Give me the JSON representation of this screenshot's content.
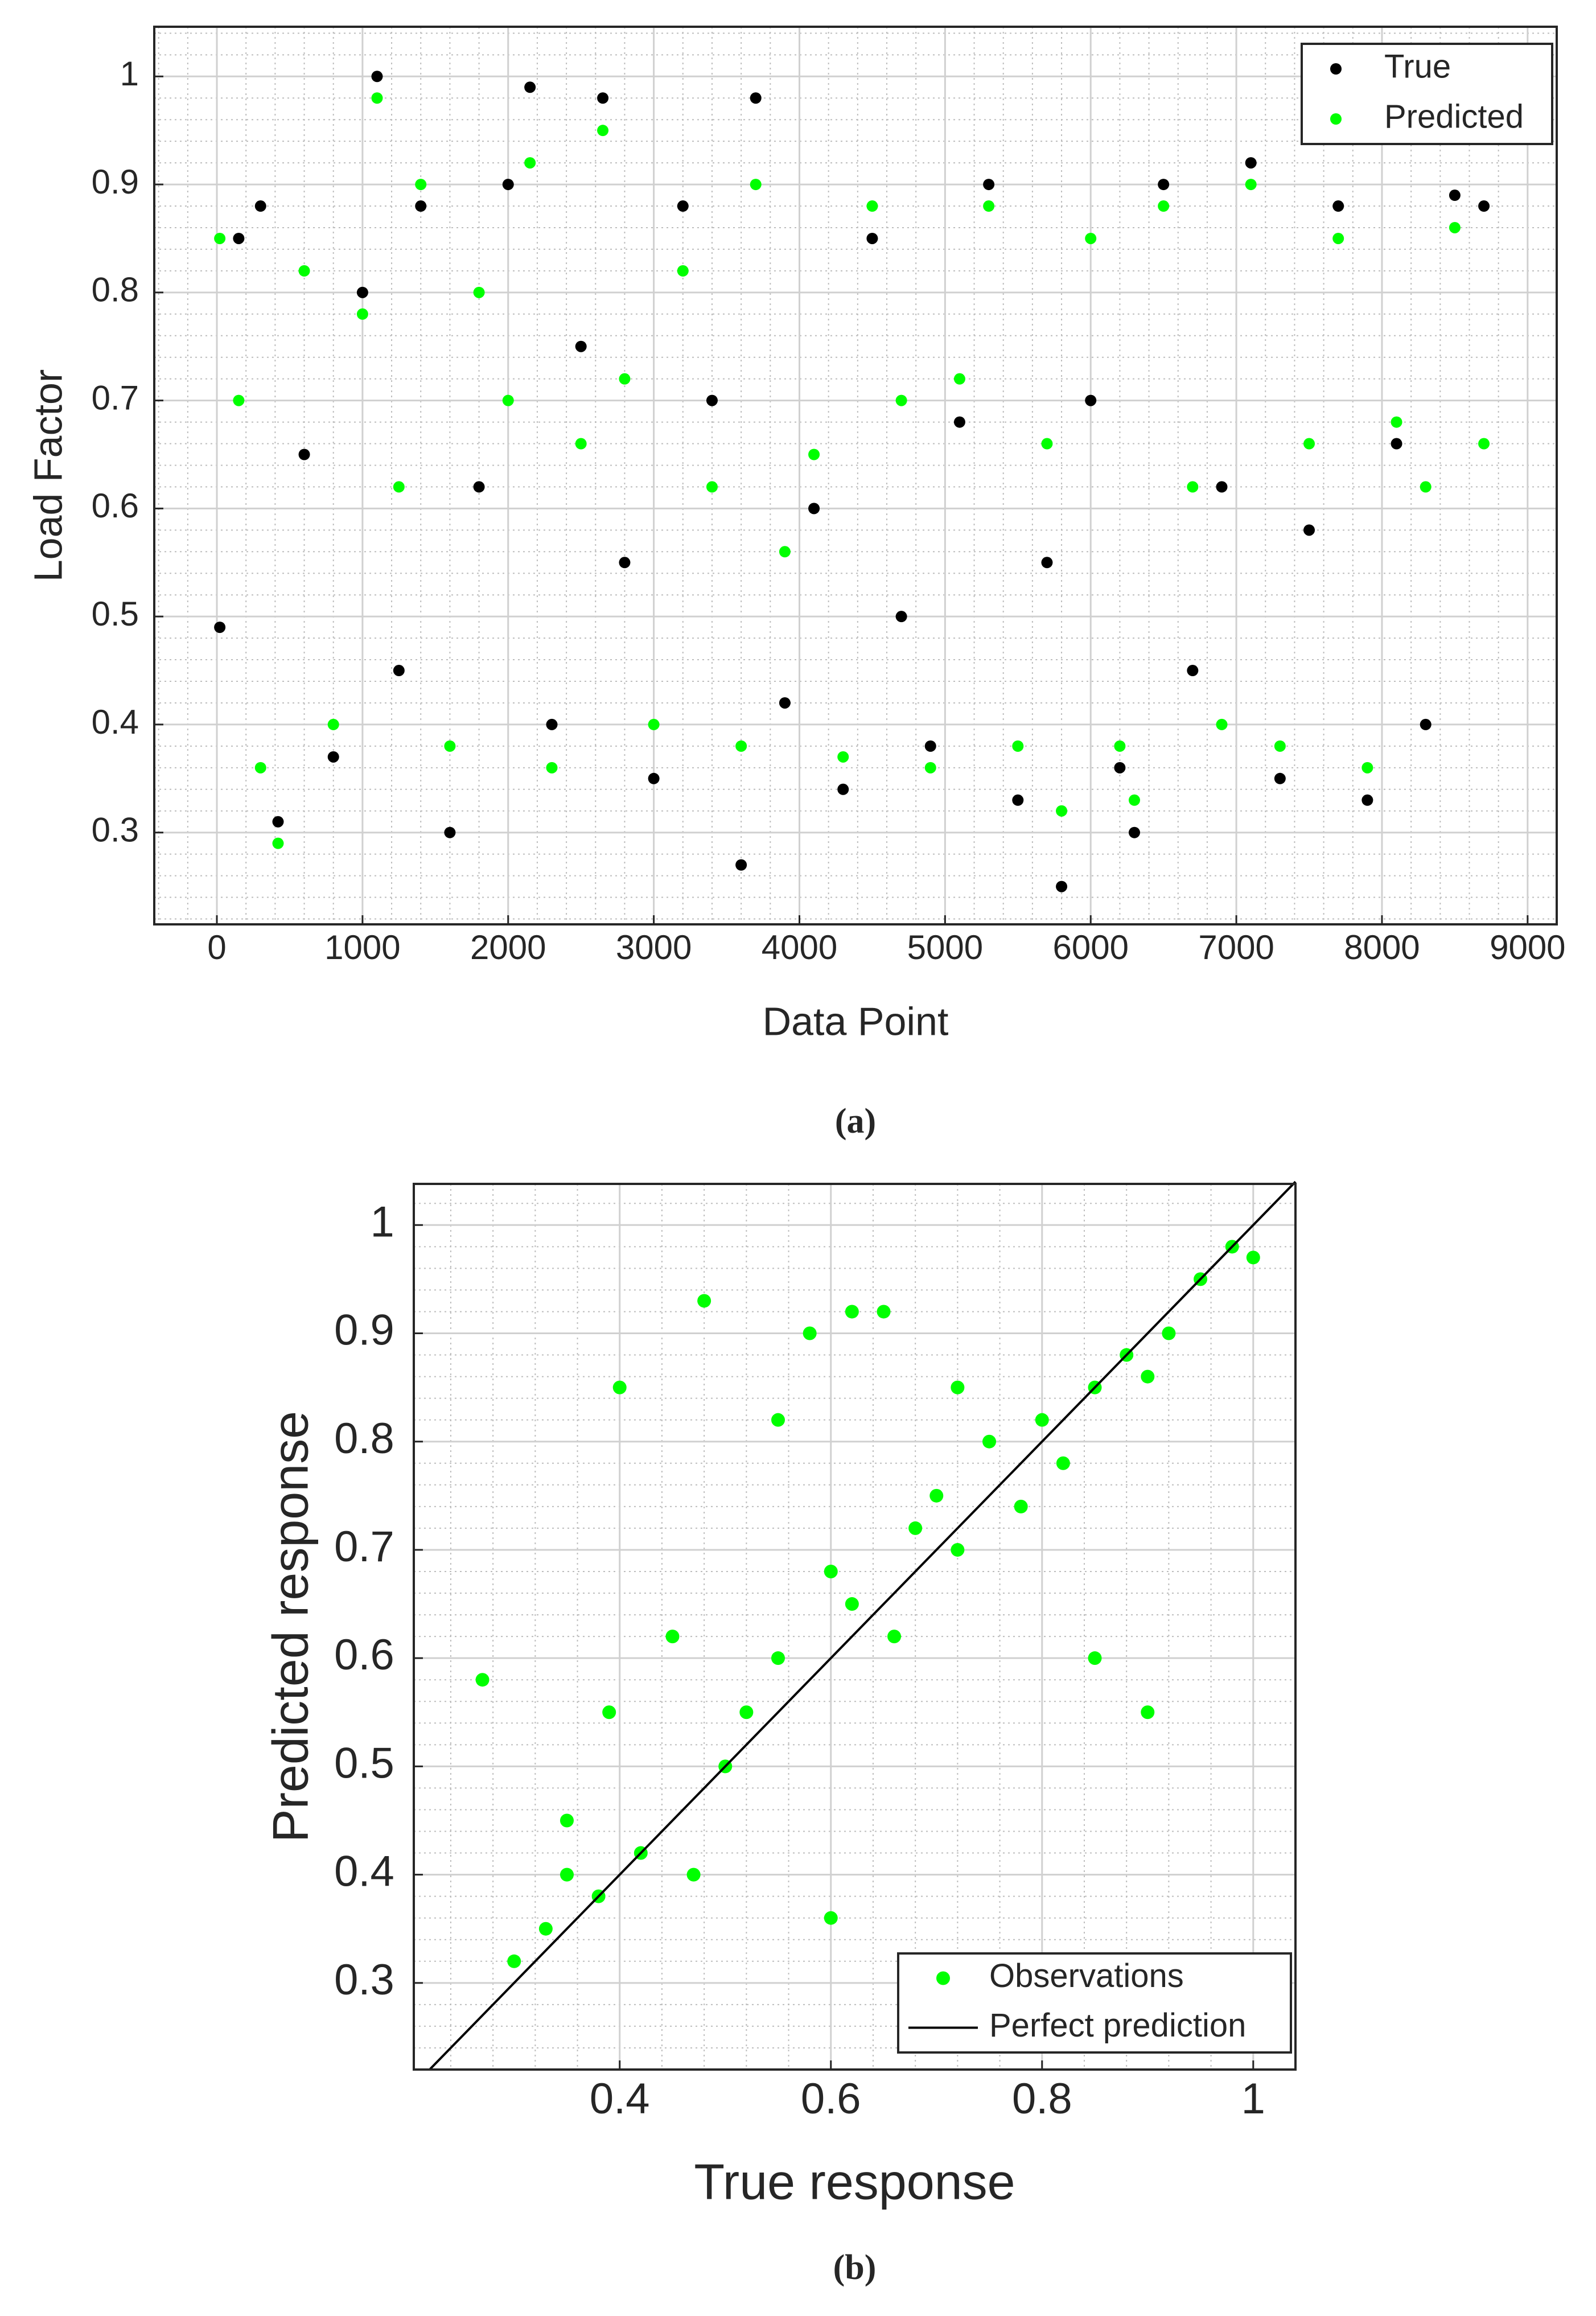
{
  "chart_data": [
    {
      "type": "scatter",
      "caption": "(a)",
      "x_label": "Data Point",
      "y_label": "Load Factor",
      "x": [
        20,
        150,
        300,
        420,
        600,
        800,
        1000,
        1100,
        1250,
        1400,
        1600,
        1800,
        2000,
        2150,
        2300,
        2500,
        2650,
        2800,
        3000,
        3200,
        3400,
        3600,
        3700,
        3900,
        4100,
        4300,
        4500,
        4700,
        4900,
        5100,
        5300,
        5500,
        5700,
        5800,
        6000,
        6200,
        6300,
        6500,
        6700,
        6900,
        7100,
        7300,
        7500,
        7700,
        7900,
        8100,
        8300,
        8500,
        8700
      ],
      "series": [
        {
          "name": "True",
          "color": "#000000",
          "values": [
            0.49,
            0.85,
            0.88,
            0.31,
            0.65,
            0.37,
            0.8,
            1.0,
            0.45,
            0.88,
            0.3,
            0.62,
            0.9,
            0.99,
            0.4,
            0.75,
            0.98,
            0.55,
            0.35,
            0.88,
            0.7,
            0.27,
            0.98,
            0.42,
            0.6,
            0.34,
            0.85,
            0.5,
            0.38,
            0.68,
            0.9,
            0.33,
            0.55,
            0.25,
            0.7,
            0.36,
            0.3,
            0.9,
            0.45,
            0.62,
            0.92,
            0.35,
            0.58,
            0.88,
            0.33,
            0.66,
            0.4,
            0.89,
            0.88
          ]
        },
        {
          "name": "Predicted",
          "color": "#00ff00",
          "values": [
            0.85,
            0.7,
            0.36,
            0.29,
            0.82,
            0.4,
            0.78,
            0.98,
            0.62,
            0.9,
            0.38,
            0.8,
            0.7,
            0.92,
            0.36,
            0.66,
            0.95,
            0.72,
            0.4,
            0.82,
            0.62,
            0.38,
            0.9,
            0.56,
            0.65,
            0.37,
            0.88,
            0.7,
            0.36,
            0.72,
            0.88,
            0.38,
            0.66,
            0.32,
            0.85,
            0.38,
            0.33,
            0.88,
            0.62,
            0.4,
            0.9,
            0.38,
            0.66,
            0.85,
            0.36,
            0.68,
            0.62,
            0.86,
            0.66
          ]
        }
      ],
      "xlim": [
        -430,
        9200
      ],
      "xticks": [
        0,
        1000,
        2000,
        3000,
        4000,
        5000,
        6000,
        7000,
        8000,
        9000
      ],
      "ylim": [
        0.215,
        1.046
      ],
      "yticks": [
        0.3,
        0.4,
        0.5,
        0.6,
        0.7,
        0.8,
        0.9,
        1
      ],
      "grid": true,
      "minor_grid": true,
      "legend": "northeast"
    },
    {
      "type": "scatter",
      "caption": "(b)",
      "x_label": "True response",
      "y_label": "Predicted response",
      "series": [
        {
          "name": "Observations",
          "color": "#00ff00",
          "x": [
            0.27,
            0.3,
            0.33,
            0.35,
            0.38,
            0.4,
            0.42,
            0.45,
            0.48,
            0.5,
            0.52,
            0.55,
            0.58,
            0.6,
            0.62,
            0.65,
            0.68,
            0.7,
            0.72,
            0.75,
            0.78,
            0.8,
            0.82,
            0.85,
            0.88,
            0.9,
            0.92,
            0.95,
            0.98,
            1.0,
            0.39,
            0.47,
            0.6,
            0.66,
            0.85,
            0.9,
            0.55,
            0.72,
            0.35,
            0.62
          ],
          "values": [
            0.58,
            0.32,
            0.35,
            0.45,
            0.38,
            0.85,
            0.42,
            0.62,
            0.93,
            0.5,
            0.55,
            0.6,
            0.9,
            0.68,
            0.65,
            0.92,
            0.72,
            0.75,
            0.7,
            0.8,
            0.74,
            0.82,
            0.78,
            0.85,
            0.88,
            0.86,
            0.9,
            0.95,
            0.98,
            0.97,
            0.55,
            0.4,
            0.36,
            0.62,
            0.6,
            0.55,
            0.82,
            0.85,
            0.4,
            0.92
          ]
        },
        {
          "name": "Perfect prediction",
          "color": "#000000",
          "style": "line",
          "x": [
            0.22,
            1.04
          ],
          "values": [
            0.22,
            1.04
          ]
        }
      ],
      "xlim": [
        0.205,
        1.04
      ],
      "xticks": [
        0.4,
        0.6,
        0.8,
        1
      ],
      "ylim": [
        0.22,
        1.038
      ],
      "yticks": [
        0.3,
        0.4,
        0.5,
        0.6,
        0.7,
        0.8,
        0.9,
        1
      ],
      "grid": true,
      "minor_grid": true,
      "legend": "southeast"
    }
  ]
}
